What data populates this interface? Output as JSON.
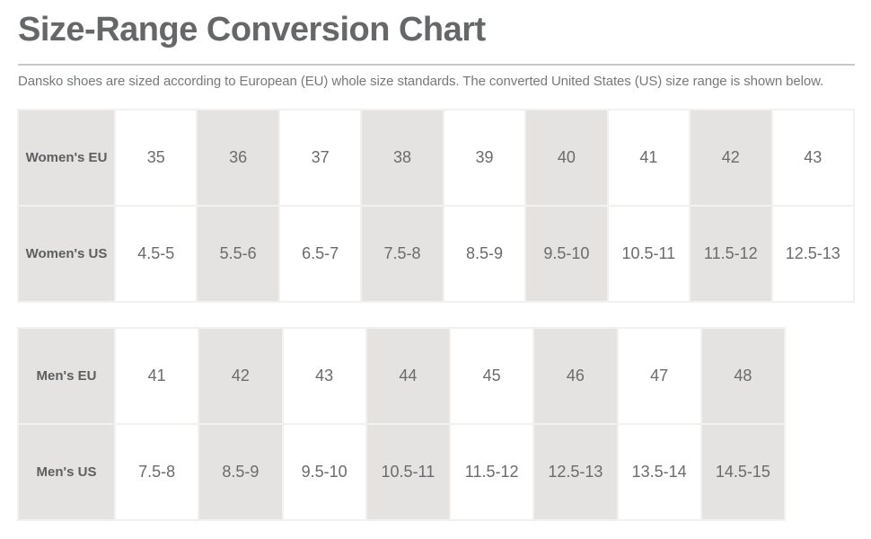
{
  "page": {
    "title": "Size-Range Conversion Chart",
    "description": "Dansko shoes are sized according to European (EU) whole size standards. The converted United States (US) size range is shown below."
  },
  "colors": {
    "title_text": "#666769",
    "description_text": "#77787a",
    "header_cell_text": "#5d5e60",
    "cell_text": "#6a6b6e",
    "shaded_cell_bg": "#e4e3e1",
    "cell_border": "#f2f1ef",
    "divider": "#c9c9c9",
    "background": "#ffffff"
  },
  "chart_data": [
    {
      "type": "table",
      "rows": [
        {
          "header": "Women's EU",
          "values": [
            "35",
            "36",
            "37",
            "38",
            "39",
            "40",
            "41",
            "42",
            "43"
          ]
        },
        {
          "header": "Women's US",
          "values": [
            "4.5-5",
            "5.5-6",
            "6.5-7",
            "7.5-8",
            "8.5-9",
            "9.5-10",
            "10.5-11",
            "11.5-12",
            "12.5-13"
          ]
        }
      ]
    },
    {
      "type": "table",
      "rows": [
        {
          "header": "Men's EU",
          "values": [
            "41",
            "42",
            "43",
            "44",
            "45",
            "46",
            "47",
            "48"
          ]
        },
        {
          "header": "Men's US",
          "values": [
            "7.5-8",
            "8.5-9",
            "9.5-10",
            "10.5-11",
            "11.5-12",
            "12.5-13",
            "13.5-14",
            "14.5-15"
          ]
        }
      ]
    }
  ]
}
